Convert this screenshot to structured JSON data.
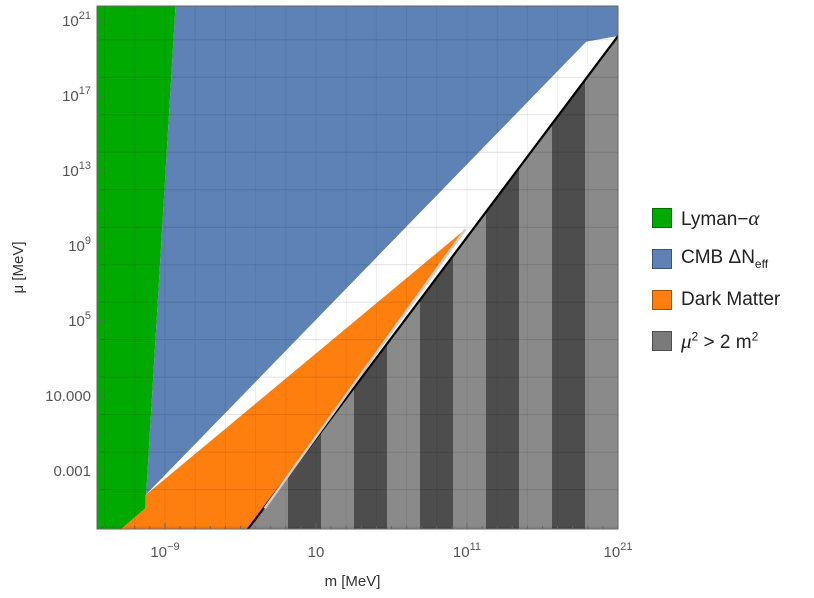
{
  "chart_data": {
    "type": "area",
    "title": "",
    "xlabel": "m [MeV]",
    "ylabel": "μ [MeV]",
    "x_scale": "log",
    "y_scale": "log",
    "xlim_log10": [
      -13.5,
      21.0
    ],
    "ylim_log10": [
      -6.1,
      21.8
    ],
    "x_tick_labels": [
      "10^-9",
      "10",
      "10^11",
      "10^21"
    ],
    "x_tick_log10": [
      -9,
      1,
      11,
      21
    ],
    "y_tick_labels": [
      "0.001",
      "10.000",
      "10^5",
      "10^9",
      "10^13",
      "10^17",
      "10^21"
    ],
    "y_tick_log10": [
      -3,
      1,
      5,
      9,
      13,
      17,
      21
    ],
    "grid": true,
    "legend_position": "right",
    "series": [
      {
        "name": "Lyman-α",
        "color": "#00aa00",
        "polygon_log10": [
          [
            -13.5,
            -6.1
          ],
          [
            -11.9,
            -6.1
          ],
          [
            -10.3,
            -5.0
          ],
          [
            -8.3,
            21.8
          ],
          [
            -13.5,
            21.8
          ]
        ]
      },
      {
        "name": "CMB ΔN_eff",
        "color": "#5e82b5",
        "polygon_log10": [
          [
            -10.3,
            -5.0
          ],
          [
            -8.3,
            21.8
          ],
          [
            21.0,
            21.8
          ],
          [
            21.0,
            20.2
          ],
          [
            18.9,
            19.9
          ],
          [
            -10.3,
            -4.3
          ]
        ]
      },
      {
        "name": "Dark Matter",
        "color": "#ff7f0e",
        "polygon_log10": [
          [
            -11.9,
            -6.1
          ],
          [
            -10.3,
            -5.0
          ],
          [
            -10.3,
            -4.3
          ],
          [
            10.9,
            9.9
          ],
          [
            -2.4,
            -5.0
          ],
          [
            -3.5,
            -6.1
          ]
        ]
      },
      {
        "name": "μ² > 2 m²",
        "color": "#8a8a8a",
        "polygon_log10": [
          [
            -3.5,
            -6.1
          ],
          [
            21.0,
            20.2
          ],
          [
            21.0,
            -6.1
          ]
        ]
      }
    ]
  },
  "legend": {
    "items": [
      {
        "main": "Lyman−",
        "greek": "α",
        "sub": "",
        "tail": "",
        "color": "#00aa00"
      },
      {
        "main": "CMB ΔN",
        "greek": "",
        "sub": "eff",
        "tail": "",
        "color": "#5e82b5"
      },
      {
        "main": "Dark Matter",
        "greek": "",
        "sub": "",
        "tail": "",
        "color": "#ff7f0e"
      },
      {
        "main": "",
        "greek": "μ",
        "sub": "",
        "tail": "> 2 m",
        "color": "#7a7a7a"
      }
    ]
  }
}
